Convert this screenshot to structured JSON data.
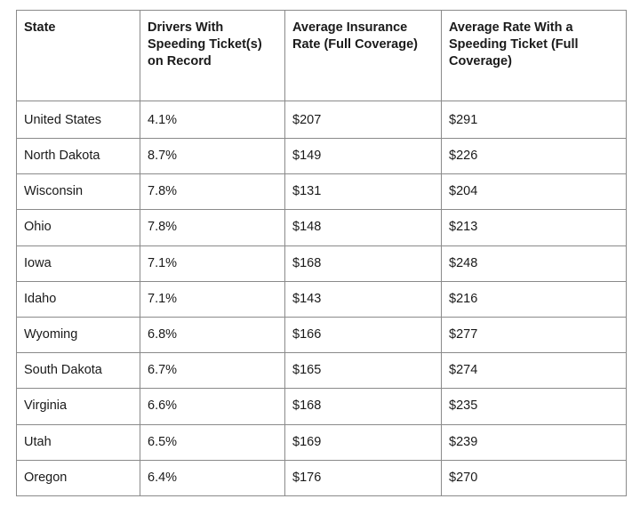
{
  "table": {
    "headers": [
      "State",
      "Drivers With Speeding Ticket(s) on Record",
      "Average Insurance Rate (Full Coverage)",
      "Average Rate With a Speeding Ticket (Full Coverage)"
    ],
    "rows": [
      [
        "United States",
        "4.1%",
        "$207",
        "$291"
      ],
      [
        "North Dakota",
        "8.7%",
        "$149",
        "$226"
      ],
      [
        "Wisconsin",
        "7.8%",
        "$131",
        "$204"
      ],
      [
        "Ohio",
        "7.8%",
        "$148",
        "$213"
      ],
      [
        "Iowa",
        "7.1%",
        "$168",
        "$248"
      ],
      [
        "Idaho",
        "7.1%",
        "$143",
        "$216"
      ],
      [
        "Wyoming",
        "6.8%",
        "$166",
        "$277"
      ],
      [
        "South Dakota",
        "6.7%",
        "$165",
        "$274"
      ],
      [
        "Virginia",
        "6.6%",
        "$168",
        "$235"
      ],
      [
        "Utah",
        "6.5%",
        "$169",
        "$239"
      ],
      [
        "Oregon",
        "6.4%",
        "$176",
        "$270"
      ]
    ]
  }
}
